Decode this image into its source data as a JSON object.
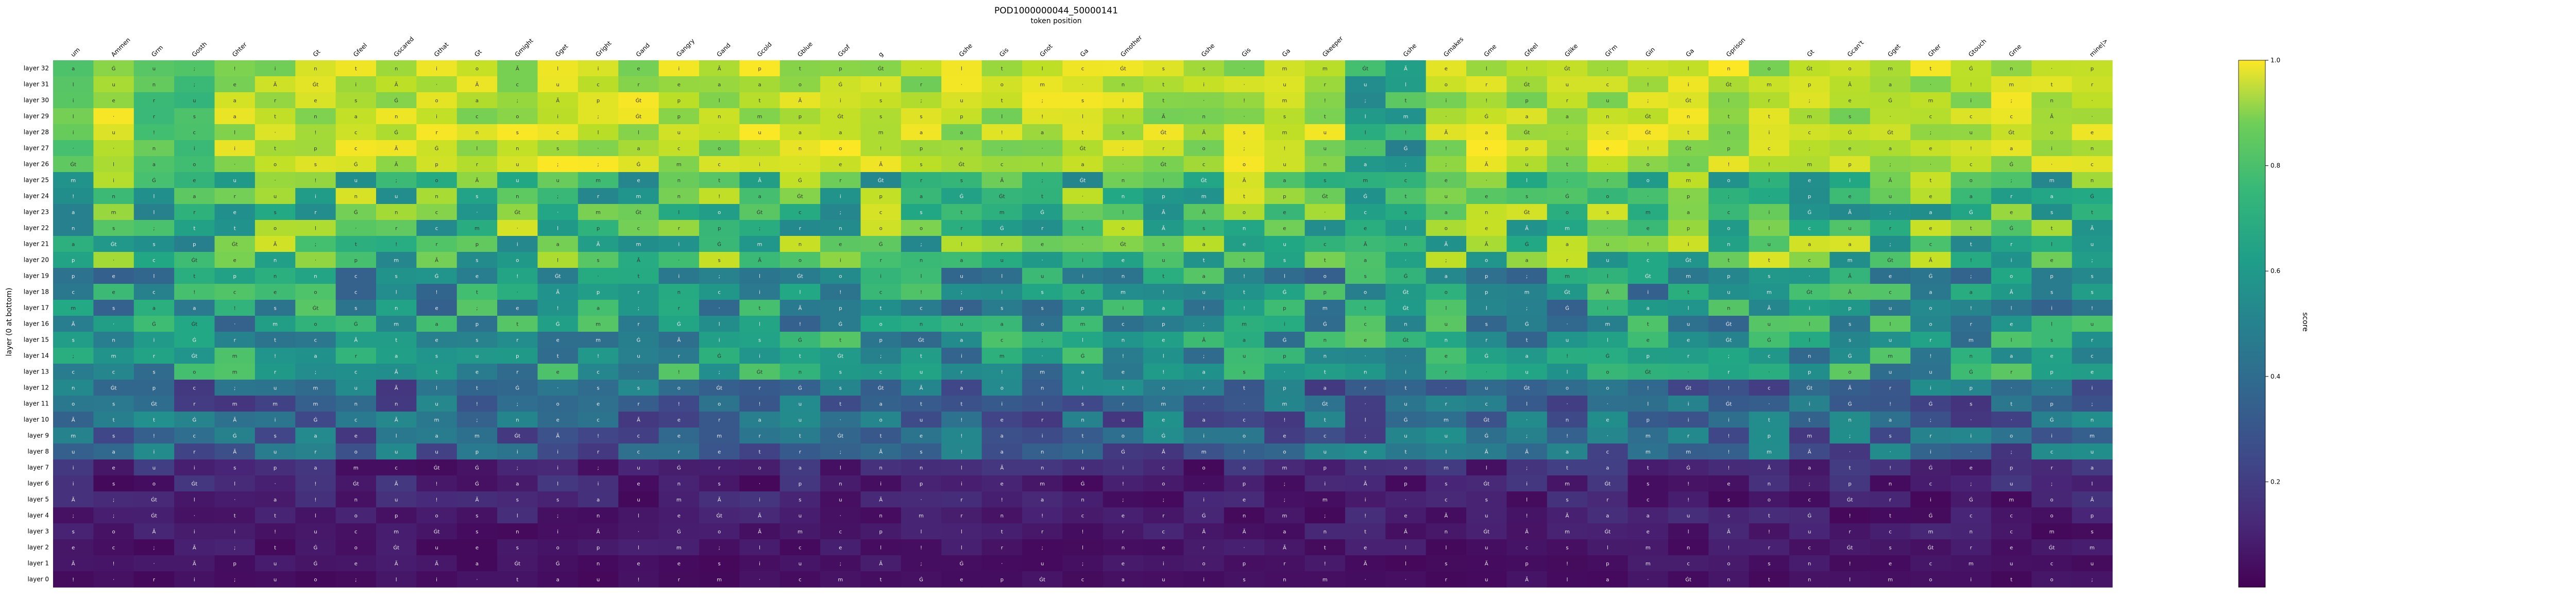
{
  "chart_data": {
    "type": "heatmap",
    "title": "POD1000000044_50000141",
    "xlabel": "token position",
    "ylabel": "layer (0 at bottom)",
    "colorbar": {
      "label": "score",
      "colormap": "viridis",
      "range": [
        0.0,
        1.0
      ],
      "ticks": [
        0.2,
        0.4,
        0.6,
        0.8,
        1.0
      ],
      "tick_labels": [
        "0.2",
        "0.4",
        "0.6",
        "0.8",
        "1.0"
      ]
    },
    "x_tokens": [
      "um",
      "Ammen",
      "Grm",
      "Gosth",
      "Ghter",
      "",
      "Gt",
      "Gfeel",
      "Gscared",
      "Gthat",
      "Gt",
      "Gmight",
      "Gget",
      "Gright",
      "Gand",
      "Gangry",
      "Gand",
      "Gcold",
      "Gblue",
      "Gsof",
      "g",
      "",
      "Gshe",
      "Gis",
      "Gnot",
      "Ga",
      "Gmother",
      "",
      "Gshe",
      "Gis",
      "Ga",
      "Gkeeper",
      "",
      "Gshe",
      "Gmakes",
      "Gme",
      "Gfeel",
      "Glike",
      "GI'm",
      "Gin",
      "Ga",
      "Gprison",
      "",
      "Gt",
      "Gcan't",
      "Gget",
      "Gher",
      "Gtouch",
      "Gme",
      "",
      "mine|>"
    ],
    "y_labels": [
      "layer 32",
      "layer 31",
      "layer 30",
      "layer 29",
      "layer 28",
      "layer 27",
      "layer 26",
      "layer 25",
      "layer 24",
      "layer 23",
      "layer 22",
      "layer 21",
      "layer 20",
      "layer 19",
      "layer 18",
      "layer 17",
      "layer 16",
      "layer 15",
      "layer 14",
      "layer 13",
      "layer 12",
      "layer 11",
      "layer 10",
      "layer 9",
      "layer 8",
      "layer 7",
      "layer 6",
      "layer 5",
      "layer 4",
      "layer 3",
      "layer 2",
      "layer 1",
      "layer 0"
    ],
    "cell_text_pool": [
      "Ă",
      "a",
      "t",
      "e",
      "Ġ",
      "i",
      "m",
      "s",
      "o",
      "n",
      ";",
      "l",
      "r",
      "p",
      "c",
      "Ġt",
      "!",
      "u",
      "·"
    ],
    "pattern_note_values": {
      "layer_rows": 33,
      "token_cols": 51
    },
    "grid": false,
    "legend": "none"
  }
}
